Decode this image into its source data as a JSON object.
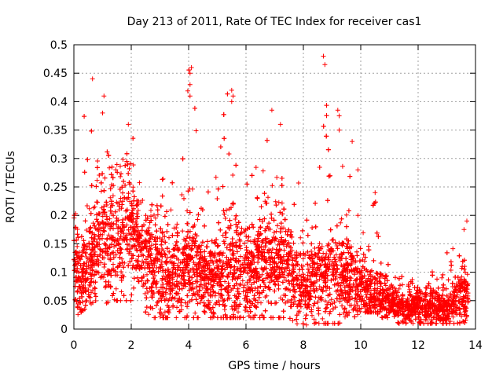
{
  "chart_data": {
    "type": "scatter",
    "title": "Day 213 of 2011, Rate Of TEC Index for receiver cas1",
    "xlabel": "GPS time / hours",
    "ylabel": "ROTI / TECUs",
    "xlim": [
      0,
      14
    ],
    "ylim": [
      0,
      0.5
    ],
    "grid": true,
    "marker": "+",
    "color": "#ff0000",
    "x_ticks": [
      0,
      2,
      4,
      6,
      8,
      10,
      12,
      14
    ],
    "x_tick_labels": [
      "0",
      "2",
      "4",
      "6",
      "8",
      "10",
      "12",
      "14"
    ],
    "y_ticks": [
      0,
      0.05,
      0.1,
      0.15,
      0.2,
      0.25,
      0.3,
      0.35,
      0.4,
      0.45,
      0.5
    ],
    "y_tick_labels": [
      "0",
      "0.05",
      "0.1",
      "0.15",
      "0.2",
      "0.25",
      "0.3",
      "0.35",
      "0.4",
      "0.45",
      "0.5"
    ],
    "envelope": {
      "hours": [
        0,
        0.25,
        0.5,
        0.75,
        1.0,
        1.25,
        1.5,
        1.75,
        2.0,
        2.25,
        2.5,
        2.75,
        3.0,
        3.25,
        3.5,
        3.75,
        4.0,
        4.25,
        4.5,
        4.75,
        5.0,
        5.25,
        5.5,
        5.75,
        6.0,
        6.25,
        6.5,
        6.75,
        7.0,
        7.25,
        7.5,
        7.75,
        8.0,
        8.25,
        8.5,
        8.75,
        9.0,
        9.25,
        9.5,
        9.75,
        10.0,
        10.25,
        10.5,
        10.75,
        11.0,
        11.25,
        11.5,
        11.75,
        12.0,
        12.25,
        12.5,
        12.75,
        13.0,
        13.25,
        13.5,
        13.75
      ],
      "median": [
        0.12,
        0.08,
        0.1,
        0.13,
        0.15,
        0.14,
        0.15,
        0.17,
        0.17,
        0.16,
        0.13,
        0.11,
        0.1,
        0.09,
        0.09,
        0.1,
        0.11,
        0.1,
        0.09,
        0.08,
        0.09,
        0.1,
        0.11,
        0.1,
        0.09,
        0.1,
        0.11,
        0.12,
        0.12,
        0.11,
        0.1,
        0.08,
        0.07,
        0.08,
        0.09,
        0.1,
        0.1,
        0.09,
        0.09,
        0.08,
        0.07,
        0.06,
        0.06,
        0.05,
        0.05,
        0.04,
        0.04,
        0.035,
        0.04,
        0.04,
        0.04,
        0.035,
        0.04,
        0.05,
        0.06,
        0.05
      ],
      "spread": [
        0.09,
        0.07,
        0.08,
        0.09,
        0.1,
        0.1,
        0.1,
        0.1,
        0.09,
        0.09,
        0.09,
        0.08,
        0.08,
        0.08,
        0.08,
        0.08,
        0.09,
        0.08,
        0.08,
        0.07,
        0.08,
        0.09,
        0.09,
        0.08,
        0.08,
        0.08,
        0.09,
        0.09,
        0.09,
        0.08,
        0.08,
        0.07,
        0.06,
        0.06,
        0.07,
        0.08,
        0.08,
        0.07,
        0.07,
        0.06,
        0.05,
        0.05,
        0.04,
        0.04,
        0.03,
        0.03,
        0.025,
        0.025,
        0.03,
        0.03,
        0.03,
        0.025,
        0.03,
        0.04,
        0.05,
        0.04
      ],
      "peak": [
        0.2,
        0.36,
        0.44,
        0.3,
        0.41,
        0.3,
        0.3,
        0.3,
        0.36,
        0.3,
        0.28,
        0.25,
        0.31,
        0.28,
        0.27,
        0.3,
        0.46,
        0.38,
        0.26,
        0.26,
        0.28,
        0.41,
        0.42,
        0.31,
        0.29,
        0.28,
        0.34,
        0.38,
        0.36,
        0.27,
        0.25,
        0.3,
        0.22,
        0.24,
        0.26,
        0.48,
        0.3,
        0.39,
        0.26,
        0.33,
        0.28,
        0.18,
        0.24,
        0.12,
        0.12,
        0.1,
        0.09,
        0.09,
        0.08,
        0.15,
        0.1,
        0.1,
        0.15,
        0.14,
        0.19,
        0.14
      ],
      "floor": [
        0.02,
        0.03,
        0.04,
        0.05,
        0.04,
        0.05,
        0.05,
        0.05,
        0.05,
        0.03,
        0.03,
        0.02,
        0.02,
        0.02,
        0.02,
        0.02,
        0.02,
        0.02,
        0.02,
        0.02,
        0.02,
        0.02,
        0.02,
        0.02,
        0.02,
        0.02,
        0.02,
        0.02,
        0.02,
        0.02,
        0.02,
        0.01,
        0.005,
        0.01,
        0.01,
        0.01,
        0.01,
        0.01,
        0.02,
        0.02,
        0.03,
        0.03,
        0.03,
        0.02,
        0.02,
        0.01,
        0.01,
        0.01,
        0.01,
        0.01,
        0.01,
        0.01,
        0.01,
        0.01,
        0.01,
        0.01
      ],
      "points_per_hour": 520
    },
    "highlighted_outliers": [
      {
        "x": 0.65,
        "y": 0.44
      },
      {
        "x": 1.05,
        "y": 0.41
      },
      {
        "x": 1.0,
        "y": 0.38
      },
      {
        "x": 1.9,
        "y": 0.36
      },
      {
        "x": 4.1,
        "y": 0.46
      },
      {
        "x": 4.05,
        "y": 0.45
      },
      {
        "x": 4.05,
        "y": 0.43
      },
      {
        "x": 4.05,
        "y": 0.41
      },
      {
        "x": 5.5,
        "y": 0.42
      },
      {
        "x": 5.55,
        "y": 0.41
      },
      {
        "x": 5.5,
        "y": 0.4
      },
      {
        "x": 6.9,
        "y": 0.385
      },
      {
        "x": 7.2,
        "y": 0.36
      },
      {
        "x": 8.7,
        "y": 0.48
      },
      {
        "x": 8.75,
        "y": 0.465
      },
      {
        "x": 9.2,
        "y": 0.385
      },
      {
        "x": 9.25,
        "y": 0.375
      },
      {
        "x": 9.25,
        "y": 0.35
      },
      {
        "x": 9.7,
        "y": 0.33
      },
      {
        "x": 9.9,
        "y": 0.28
      },
      {
        "x": 10.5,
        "y": 0.24
      },
      {
        "x": 13.7,
        "y": 0.19
      },
      {
        "x": 13.6,
        "y": 0.175
      }
    ]
  }
}
